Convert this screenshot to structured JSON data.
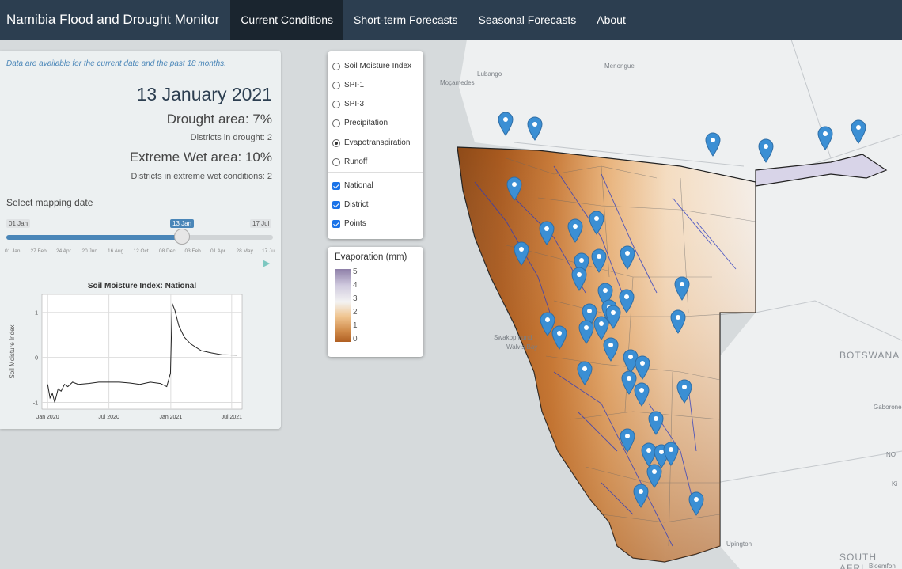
{
  "navbar": {
    "brand": "Namibia Flood and Drought Monitor",
    "tabs": [
      {
        "label": "Current Conditions",
        "active": true
      },
      {
        "label": "Short-term Forecasts",
        "active": false
      },
      {
        "label": "Seasonal Forecasts",
        "active": false
      },
      {
        "label": "About",
        "active": false
      }
    ]
  },
  "panel": {
    "note": "Data are available for the current date and the past 18 months.",
    "date": "13 January 2021",
    "drought_area": "Drought area: 7%",
    "districts_drought": "Districts in drought: 2",
    "wet_area": "Extreme Wet area: 10%",
    "districts_wet": "Districts in extreme wet conditions: 2",
    "slider_label": "Select mapping date",
    "slider_min": "01 Jan",
    "slider_value": "13 Jan",
    "slider_max": "17 Jul",
    "slider_fraction": 0.66,
    "slider_ticks": [
      "01 Jan",
      "27 Feb",
      "24 Apr",
      "20 Jun",
      "16 Aug",
      "12 Oct",
      "08 Dec",
      "03 Feb",
      "01 Apr",
      "28 May",
      "17 Jul"
    ]
  },
  "chart_data": {
    "type": "line",
    "title": "Soil Moisture Index: National",
    "xlabel": "",
    "ylabel": "Soil Moisture Index",
    "x_ticks": [
      "Jan 2020",
      "Jul 2020",
      "Jan 2021",
      "Jul 2021"
    ],
    "y_ticks": [
      -1,
      0,
      1
    ],
    "ylim": [
      -1.15,
      1.4
    ],
    "grid": true,
    "series": [
      {
        "x": [
          "2020-01-01",
          "2020-01-08",
          "2020-01-15",
          "2020-01-22",
          "2020-02-01",
          "2020-02-10",
          "2020-02-20",
          "2020-03-01",
          "2020-03-15",
          "2020-04-01",
          "2020-05-01",
          "2020-06-01",
          "2020-07-01",
          "2020-08-01",
          "2020-09-01",
          "2020-10-01",
          "2020-11-01",
          "2020-12-01",
          "2020-12-20",
          "2020-12-31",
          "2021-01-05",
          "2021-01-13",
          "2021-01-25",
          "2021-02-10",
          "2021-03-01",
          "2021-04-01",
          "2021-05-01",
          "2021-06-01",
          "2021-07-17"
        ],
        "y": [
          -0.6,
          -0.9,
          -0.8,
          -1.0,
          -0.7,
          -0.75,
          -0.6,
          -0.65,
          -0.55,
          -0.6,
          -0.58,
          -0.55,
          -0.55,
          -0.55,
          -0.57,
          -0.6,
          -0.55,
          -0.58,
          -0.65,
          -0.35,
          1.2,
          1.05,
          0.7,
          0.45,
          0.3,
          0.15,
          0.1,
          0.06,
          0.05
        ]
      }
    ]
  },
  "layers": {
    "radios": [
      {
        "label": "Soil Moisture Index",
        "selected": false
      },
      {
        "label": "SPI-1",
        "selected": false
      },
      {
        "label": "SPI-3",
        "selected": false
      },
      {
        "label": "Precipitation",
        "selected": false
      },
      {
        "label": "Evapotranspiration",
        "selected": true
      },
      {
        "label": "Runoff",
        "selected": false
      }
    ],
    "checks": [
      {
        "label": "National",
        "checked": true
      },
      {
        "label": "District",
        "checked": true
      },
      {
        "label": "Points",
        "checked": true
      }
    ]
  },
  "legend": {
    "title": "Evaporation (mm)",
    "ticks": [
      "5",
      "4",
      "3",
      "2",
      "1",
      "0"
    ],
    "colors": {
      "high": "#8e7fa8",
      "mid": "#f3f3f3",
      "low": "#b05f22"
    }
  },
  "map_labels": {
    "lubango": "Lubango",
    "menongue": "Menongue",
    "mocamedes": "Moçamedes",
    "swakopmund": "Swakopmund",
    "walvis": "Walvis Bay",
    "botswana": "BOTSWANA",
    "gaborone": "Gaborone",
    "upington": "Upington",
    "south_africa": "SOUTH AFRI",
    "no": "NO",
    "ki": "Ki",
    "bloemfontein": "Bloemfon"
  },
  "colors": {
    "accent": "#4a86b8",
    "navbar": "#2c3e50",
    "marker": "#3b8fd4"
  }
}
